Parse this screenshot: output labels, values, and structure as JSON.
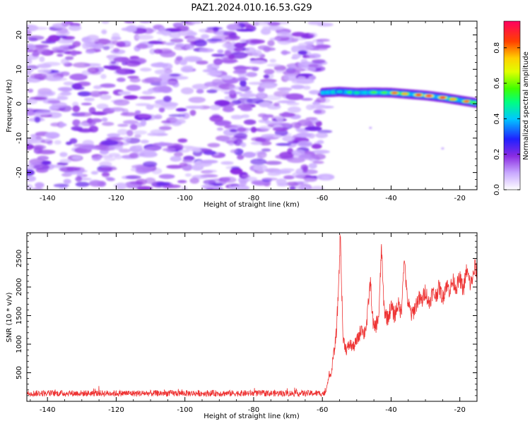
{
  "chart_data": [
    {
      "type": "heatmap",
      "title": "PAZ1.2024.010.16.53.G29",
      "xlabel": "Height of straight line (km)",
      "ylabel": "Frequency (Hz)",
      "xlim": [
        -146,
        -15
      ],
      "ylim": [
        -25,
        24
      ],
      "xticks": [
        -140,
        -120,
        -100,
        -80,
        -60,
        -40,
        -20
      ],
      "yticks": [
        -20,
        -10,
        0,
        10,
        20
      ],
      "colorbar": {
        "label": "Normalized spectral amplitude",
        "range": [
          0,
          0.95
        ],
        "ticks": [
          0.0,
          0.2,
          0.4,
          0.6,
          0.8
        ],
        "colors": [
          "#ffffff",
          "#c8a8ff",
          "#8a2be2",
          "#2020ff",
          "#00c8ff",
          "#00ff80",
          "#40ff00",
          "#e0ff00",
          "#ffd000",
          "#ff4000",
          "#ff0060"
        ]
      },
      "signal_track": {
        "description_free": true,
        "points": [
          [
            -60,
            3.2
          ],
          [
            -55,
            3.5
          ],
          [
            -50,
            3.2
          ],
          [
            -45,
            3.3
          ],
          [
            -40,
            3.2
          ],
          [
            -35,
            2.8
          ],
          [
            -30,
            2.4
          ],
          [
            -25,
            1.8
          ],
          [
            -20,
            1.0
          ],
          [
            -15,
            0.2
          ]
        ],
        "peaks": [
          [
            -55,
            0.45
          ],
          [
            -52,
            0.55
          ],
          [
            -50,
            0.5
          ],
          [
            -45,
            0.6
          ],
          [
            -42,
            0.6
          ],
          [
            -39,
            0.85
          ],
          [
            -36,
            0.8
          ],
          [
            -32,
            0.9
          ],
          [
            -29,
            0.95
          ],
          [
            -25,
            0.9
          ],
          [
            -22,
            0.8
          ],
          [
            -18,
            0.85
          ],
          [
            -16,
            0.6
          ]
        ]
      }
    },
    {
      "type": "line",
      "xlabel": "Height of straight line (km)",
      "ylabel": "SNR (10 * v/v)",
      "xlim": [
        -146,
        -15
      ],
      "ylim": [
        0,
        2950
      ],
      "xticks": [
        -140,
        -120,
        -100,
        -80,
        -60,
        -40,
        -20
      ],
      "yticks": [
        500,
        1000,
        1500,
        2000,
        2500
      ],
      "series": [
        {
          "color": "#ee3333",
          "noise_floor": {
            "x_range": [
              -146,
              -59
            ],
            "mean": 140,
            "amplitude": 110
          },
          "points": [
            [
              -59,
              150
            ],
            [
              -58.5,
              320
            ],
            [
              -58,
              500
            ],
            [
              -57.5,
              420
            ],
            [
              -57,
              700
            ],
            [
              -56.5,
              900
            ],
            [
              -56,
              1150
            ],
            [
              -55.5,
              1700
            ],
            [
              -55,
              2500
            ],
            [
              -54.8,
              2940
            ],
            [
              -54.5,
              2300
            ],
            [
              -54,
              1100
            ],
            [
              -53,
              900
            ],
            [
              -52,
              1000
            ],
            [
              -51,
              950
            ],
            [
              -50,
              1050
            ],
            [
              -49,
              1200
            ],
            [
              -48.5,
              1350
            ],
            [
              -48,
              1150
            ],
            [
              -47,
              1400
            ],
            [
              -46.5,
              1800
            ],
            [
              -46,
              2100
            ],
            [
              -45.5,
              1550
            ],
            [
              -45,
              1250
            ],
            [
              -44,
              1400
            ],
            [
              -43.5,
              1550
            ],
            [
              -43,
              2400
            ],
            [
              -42.8,
              2750
            ],
            [
              -42.5,
              2200
            ],
            [
              -42,
              1600
            ],
            [
              -41,
              1450
            ],
            [
              -40,
              1650
            ],
            [
              -39,
              1500
            ],
            [
              -38,
              1700
            ],
            [
              -37,
              1550
            ],
            [
              -36.5,
              2250
            ],
            [
              -36,
              2450
            ],
            [
              -35.5,
              1900
            ],
            [
              -35,
              1700
            ],
            [
              -34,
              1500
            ],
            [
              -33,
              1650
            ],
            [
              -32,
              1800
            ],
            [
              -31,
              1750
            ],
            [
              -30,
              1950
            ],
            [
              -29,
              1700
            ],
            [
              -28,
              1900
            ],
            [
              -27,
              1850
            ],
            [
              -26,
              2000
            ],
            [
              -25,
              1800
            ],
            [
              -24,
              2050
            ],
            [
              -23,
              1950
            ],
            [
              -22,
              2100
            ],
            [
              -21,
              2000
            ],
            [
              -20,
              2150
            ],
            [
              -19,
              1950
            ],
            [
              -18,
              2300
            ],
            [
              -17,
              2050
            ],
            [
              -16,
              2200
            ],
            [
              -15.5,
              2400
            ],
            [
              -15,
              2150
            ]
          ]
        }
      ]
    }
  ]
}
